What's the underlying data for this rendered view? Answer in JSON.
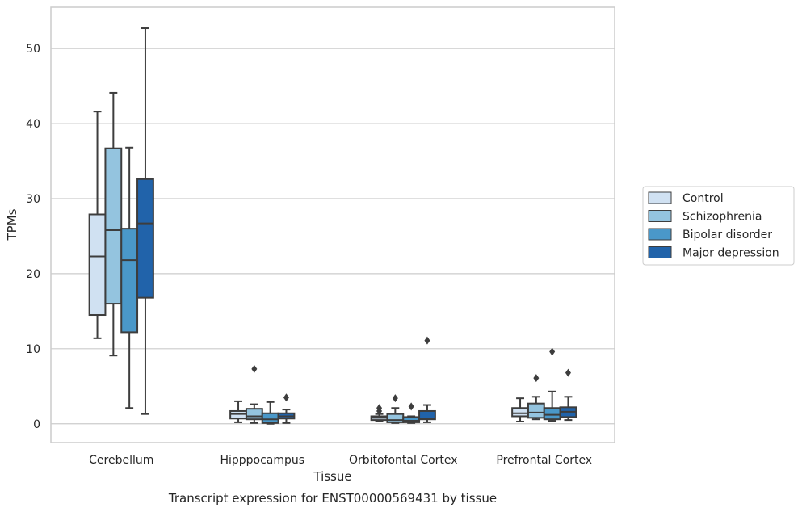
{
  "chart_data": {
    "type": "box",
    "title": "",
    "caption": "Transcript expression for ENST00000569431 by tissue",
    "xlabel": "Tissue",
    "ylabel": "TPMs",
    "ylim": [
      -2.5,
      55.5
    ],
    "yticks": [
      0,
      10,
      20,
      30,
      40,
      50
    ],
    "grid": "horizontal",
    "legend_position": "right",
    "categories": [
      "Cerebellum",
      "Hipppocampus",
      "Orbitofontal Cortex",
      "Prefrontal Cortex"
    ],
    "series": [
      {
        "name": "Control",
        "color": "#d0e1f2",
        "boxes": [
          {
            "whisker_low": 11.4,
            "q1": 14.5,
            "median": 22.3,
            "q3": 27.9,
            "whisker_high": 41.6,
            "outliers": []
          },
          {
            "whisker_low": 0.2,
            "q1": 0.7,
            "median": 1.3,
            "q3": 1.7,
            "whisker_high": 3.0,
            "outliers": []
          },
          {
            "whisker_low": 0.3,
            "q1": 0.5,
            "median": 0.8,
            "q3": 1.0,
            "whisker_high": 1.3,
            "outliers": [
              1.7,
              2.1
            ]
          },
          {
            "whisker_low": 0.3,
            "q1": 1.0,
            "median": 1.4,
            "q3": 2.1,
            "whisker_high": 3.4,
            "outliers": []
          }
        ]
      },
      {
        "name": "Schizophrenia",
        "color": "#94c4df",
        "boxes": [
          {
            "whisker_low": 9.1,
            "q1": 16.0,
            "median": 25.8,
            "q3": 36.7,
            "whisker_high": 44.1,
            "outliers": []
          },
          {
            "whisker_low": 0.1,
            "q1": 0.6,
            "median": 1.0,
            "q3": 2.0,
            "whisker_high": 2.6,
            "outliers": [
              7.3
            ]
          },
          {
            "whisker_low": 0.1,
            "q1": 0.2,
            "median": 0.5,
            "q3": 1.3,
            "whisker_high": 2.1,
            "outliers": [
              3.4
            ]
          },
          {
            "whisker_low": 0.6,
            "q1": 0.8,
            "median": 1.5,
            "q3": 2.7,
            "whisker_high": 3.6,
            "outliers": [
              6.1
            ]
          }
        ]
      },
      {
        "name": "Bipolar disorder",
        "color": "#4a98c9",
        "boxes": [
          {
            "whisker_low": 2.1,
            "q1": 12.2,
            "median": 21.8,
            "q3": 26.0,
            "whisker_high": 36.8,
            "outliers": []
          },
          {
            "whisker_low": 0.0,
            "q1": 0.1,
            "median": 0.6,
            "q3": 1.4,
            "whisker_high": 2.9,
            "outliers": []
          },
          {
            "whisker_low": 0.1,
            "q1": 0.2,
            "median": 0.4,
            "q3": 0.9,
            "whisker_high": 1.0,
            "outliers": [
              2.3
            ]
          },
          {
            "whisker_low": 0.4,
            "q1": 0.6,
            "median": 1.2,
            "q3": 2.1,
            "whisker_high": 4.3,
            "outliers": [
              9.6
            ]
          }
        ]
      },
      {
        "name": "Major depression",
        "color": "#2163aa",
        "boxes": [
          {
            "whisker_low": 1.3,
            "q1": 16.8,
            "median": 26.7,
            "q3": 32.6,
            "whisker_high": 52.7,
            "outliers": []
          },
          {
            "whisker_low": 0.1,
            "q1": 0.7,
            "median": 1.0,
            "q3": 1.4,
            "whisker_high": 1.9,
            "outliers": [
              3.5
            ]
          },
          {
            "whisker_low": 0.2,
            "q1": 0.6,
            "median": 0.7,
            "q3": 1.7,
            "whisker_high": 2.5,
            "outliers": [
              11.1
            ]
          },
          {
            "whisker_low": 0.5,
            "q1": 0.9,
            "median": 1.6,
            "q3": 2.2,
            "whisker_high": 3.6,
            "outliers": [
              6.8
            ]
          }
        ]
      }
    ]
  }
}
